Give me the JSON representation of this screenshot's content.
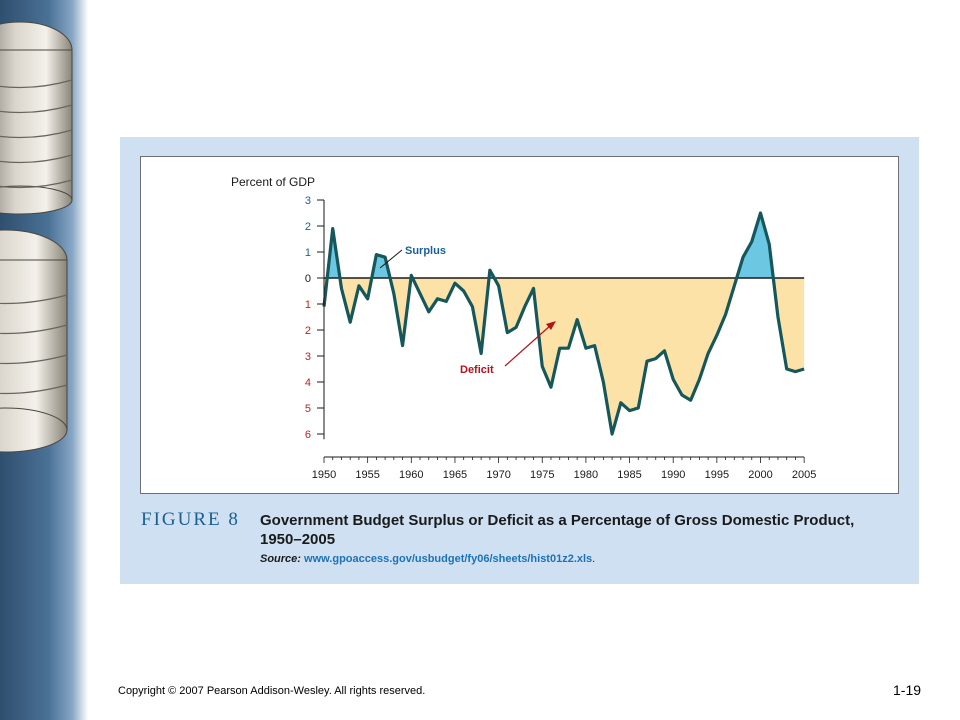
{
  "slide": {
    "copyright": "Copyright © 2007 Pearson Addison-Wesley. All rights reserved.",
    "page_number": "1-19"
  },
  "figure": {
    "label": "FIGURE 8",
    "title": "Government Budget Surplus or Deficit as a Percentage of Gross Domestic Product, 1950–2005",
    "source_label": "Source:",
    "source_url": "www.gpoaccess.gov/usbudget/fy06/sheets/hist01z2.xls",
    "source_end": "."
  },
  "chart_data": {
    "type": "area",
    "ylabel": "Percent of GDP",
    "xlim": [
      1950,
      2005
    ],
    "ylim": [
      -6.5,
      3
    ],
    "x_ticks": [
      "1950",
      "1955",
      "1960",
      "1965",
      "1970",
      "1975",
      "1980",
      "1985",
      "1990",
      "1995",
      "2000",
      "2005"
    ],
    "y_ticks_positive": [
      "3",
      "2",
      "1",
      "0"
    ],
    "y_ticks_negative": [
      "1",
      "2",
      "3",
      "4",
      "5",
      "6"
    ],
    "annotations": {
      "surplus": "Surplus",
      "deficit": "Deficit"
    },
    "colors": {
      "line": "#15575b",
      "surplus_fill": "#6cc7e2",
      "deficit_fill": "#fde2a8",
      "positive_tick": "#1a5f99",
      "negative_tick": "#c0202a",
      "arrow": "#b3131a"
    },
    "x": [
      1950,
      1951,
      1952,
      1953,
      1954,
      1955,
      1956,
      1957,
      1958,
      1959,
      1960,
      1961,
      1962,
      1963,
      1964,
      1965,
      1966,
      1967,
      1968,
      1969,
      1970,
      1971,
      1972,
      1973,
      1974,
      1975,
      1976,
      1977,
      1978,
      1979,
      1980,
      1981,
      1982,
      1983,
      1984,
      1985,
      1986,
      1987,
      1988,
      1989,
      1990,
      1991,
      1992,
      1993,
      1994,
      1995,
      1996,
      1997,
      1998,
      1999,
      2000,
      2001,
      2002,
      2003,
      2004,
      2005
    ],
    "values": [
      -1.1,
      1.9,
      -0.4,
      -1.7,
      -0.3,
      -0.8,
      0.9,
      0.8,
      -0.6,
      -2.6,
      0.1,
      -0.6,
      -1.3,
      -0.8,
      -0.9,
      -0.2,
      -0.5,
      -1.1,
      -2.9,
      0.3,
      -0.3,
      -2.1,
      -1.9,
      -1.1,
      -0.4,
      -3.4,
      -4.2,
      -2.7,
      -2.7,
      -1.6,
      -2.7,
      -2.6,
      -4.0,
      -6.0,
      -4.8,
      -5.1,
      -5.0,
      -3.2,
      -3.1,
      -2.8,
      -3.9,
      -4.5,
      -4.7,
      -3.9,
      -2.9,
      -2.2,
      -1.4,
      -0.3,
      0.8,
      1.4,
      2.5,
      1.3,
      -1.5,
      -3.5,
      -3.6,
      -3.5
    ]
  }
}
